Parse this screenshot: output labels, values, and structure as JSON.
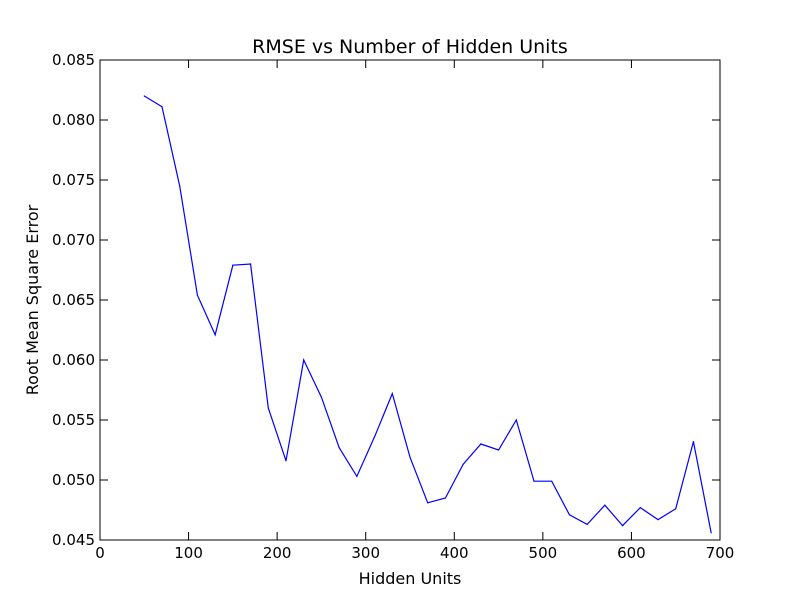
{
  "chart_data": {
    "type": "line",
    "title": "RMSE vs Number of Hidden Units",
    "xlabel": "Hidden Units",
    "ylabel": "Root Mean Square Error",
    "xlim": [
      0,
      700
    ],
    "ylim": [
      0.045,
      0.085
    ],
    "x_ticks": [
      "0",
      "100",
      "200",
      "300",
      "400",
      "500",
      "600",
      "700"
    ],
    "y_ticks": [
      "0.045",
      "0.050",
      "0.055",
      "0.060",
      "0.065",
      "0.070",
      "0.075",
      "0.080",
      "0.085"
    ],
    "grid": false,
    "line_color": "#0000ff",
    "series": [
      {
        "x": [
          50,
          70,
          90,
          110,
          130,
          150,
          170,
          190,
          210,
          230,
          250,
          270,
          290,
          310,
          330,
          350,
          370,
          390,
          410,
          430,
          450,
          470,
          490,
          510,
          530,
          550,
          570,
          590,
          610,
          630,
          650,
          670,
          690
        ],
        "values": [
          0.082,
          0.0811,
          0.0745,
          0.0654,
          0.0621,
          0.0679,
          0.068,
          0.056,
          0.0516,
          0.06,
          0.0569,
          0.0527,
          0.0503,
          0.0536,
          0.0572,
          0.0519,
          0.0481,
          0.0485,
          0.0513,
          0.053,
          0.0525,
          0.055,
          0.0499,
          0.0499,
          0.0471,
          0.0463,
          0.0479,
          0.0462,
          0.0477,
          0.0467,
          0.0476,
          0.0532,
          0.0456
        ]
      }
    ]
  }
}
